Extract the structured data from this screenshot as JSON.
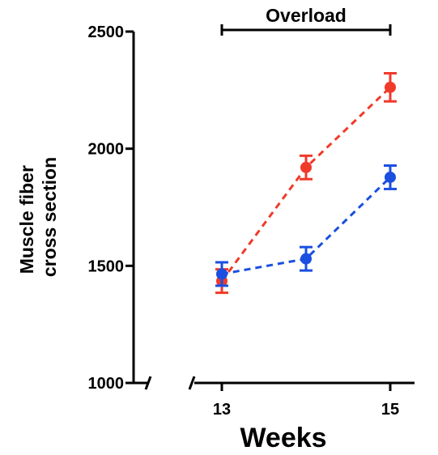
{
  "chart_data": {
    "type": "line",
    "x": [
      13,
      14,
      15
    ],
    "xticks": [
      13,
      15
    ],
    "xlim": [
      12.5,
      15.15
    ],
    "ylim": [
      1000,
      2500
    ],
    "yticks": [
      1000,
      1500,
      2000,
      2500
    ],
    "xlabel": "Weeks",
    "ylabel_lines": [
      "Muscle fiber",
      "cross section"
    ],
    "annotation": {
      "label": "Overload",
      "x_start": 13,
      "x_end": 15
    },
    "axis_breaks": true,
    "series": [
      {
        "color": "#f03a2a",
        "line_style": "dashed",
        "values": [
          1435,
          1920,
          2262
        ],
        "errors": [
          50,
          50,
          60
        ]
      },
      {
        "color": "#1a4fe0",
        "line_style": "dashed",
        "values": [
          1465,
          1530,
          1878
        ],
        "errors": [
          50,
          50,
          50
        ]
      }
    ]
  }
}
